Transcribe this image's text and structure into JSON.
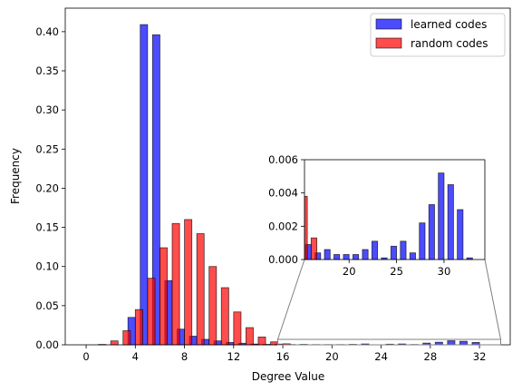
{
  "chart_data": [
    {
      "panel": "main",
      "type": "bar",
      "xlabel": "Degree Value",
      "ylabel": "Frequency",
      "xlim": [
        -1.7,
        34.5
      ],
      "ylim": [
        0,
        0.43
      ],
      "xticks": [
        "0",
        "4",
        "8",
        "12",
        "16",
        "20",
        "24",
        "28",
        "32"
      ],
      "yticks": [
        "0.00",
        "0.05",
        "0.10",
        "0.15",
        "0.20",
        "0.25",
        "0.30",
        "0.35",
        "0.40"
      ],
      "grid": false,
      "legend_position": "top-right",
      "series": [
        {
          "name": "learned codes",
          "color": "#0000ff",
          "x": [
            4,
            5,
            6,
            7,
            8,
            9,
            10,
            11,
            12,
            13,
            14,
            15,
            16,
            17,
            18,
            19,
            20,
            21,
            22,
            23,
            24,
            25,
            26,
            27,
            28,
            29,
            30,
            31,
            32,
            33
          ],
          "values": [
            0.035,
            0.409,
            0.396,
            0.082,
            0.02,
            0.011,
            0.007,
            0.005,
            0.003,
            0.002,
            0.001,
            0.0006,
            0.0009,
            0.0004,
            0.0006,
            0.0003,
            0.0003,
            0.0003,
            0.0006,
            0.0011,
            0.0001,
            0.0008,
            0.0011,
            0.0004,
            0.0022,
            0.0033,
            0.0052,
            0.0045,
            0.003,
            0.0001
          ]
        },
        {
          "name": "random codes",
          "color": "#ff0000",
          "x": [
            1,
            2,
            3,
            4,
            5,
            6,
            7,
            8,
            9,
            10,
            11,
            12,
            13,
            14,
            15,
            16
          ],
          "values": [
            0.0005,
            0.005,
            0.018,
            0.045,
            0.085,
            0.124,
            0.155,
            0.16,
            0.142,
            0.1,
            0.073,
            0.042,
            0.022,
            0.01,
            0.0038,
            0.0013
          ]
        }
      ]
    },
    {
      "panel": "inset",
      "type": "bar",
      "xlim": [
        15.3,
        34.3
      ],
      "ylim": [
        0,
        0.006
      ],
      "xticks": [
        "20",
        "25",
        "30"
      ],
      "yticks": [
        "0.000",
        "0.002",
        "0.004",
        "0.006"
      ],
      "series": [
        {
          "name": "learned codes",
          "x": [
            16,
            17,
            18,
            19,
            20,
            21,
            22,
            23,
            24,
            25,
            26,
            27,
            28,
            29,
            30,
            31,
            32,
            33
          ],
          "values": [
            0.0009,
            0.0004,
            0.0006,
            0.0003,
            0.0003,
            0.0003,
            0.0006,
            0.0011,
            0.0001,
            0.0008,
            0.0011,
            0.0004,
            0.0022,
            0.0033,
            0.0052,
            0.0045,
            0.003,
            0.0001
          ]
        },
        {
          "name": "random codes",
          "x": [
            15,
            16
          ],
          "values": [
            0.0038,
            0.0013
          ]
        }
      ]
    }
  ]
}
